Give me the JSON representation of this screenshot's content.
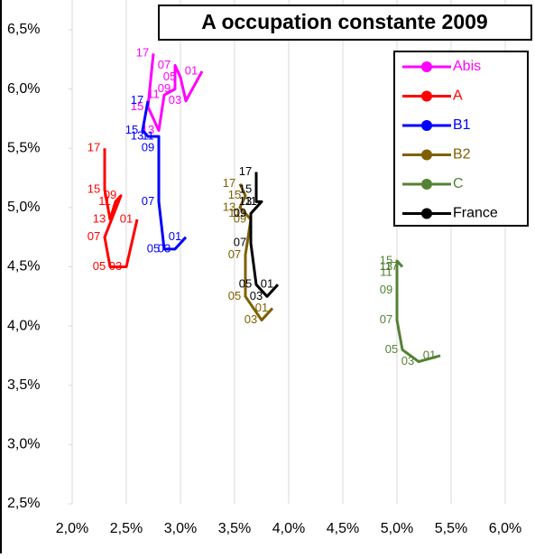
{
  "chart_data": {
    "type": "scatter-line",
    "title": "A occupation constante 2009",
    "xlim": [
      2.0,
      6.0
    ],
    "ylim": [
      2.5,
      6.5
    ],
    "xticks": [
      {
        "value": 2.0,
        "label": "2,0%"
      },
      {
        "value": 2.5,
        "label": "2,5%"
      },
      {
        "value": 3.0,
        "label": "3,0%"
      },
      {
        "value": 3.5,
        "label": "3,5%"
      },
      {
        "value": 4.0,
        "label": "4,0%"
      },
      {
        "value": 4.5,
        "label": "4,5%"
      },
      {
        "value": 5.0,
        "label": "5,0%"
      },
      {
        "value": 5.5,
        "label": "5,5%"
      },
      {
        "value": 6.0,
        "label": "6,0%"
      }
    ],
    "yticks": [
      {
        "value": 2.5,
        "label": "2,5%"
      },
      {
        "value": 3.0,
        "label": "3,0%"
      },
      {
        "value": 3.5,
        "label": "3,5%"
      },
      {
        "value": 4.0,
        "label": "4,0%"
      },
      {
        "value": 4.5,
        "label": "4,5%"
      },
      {
        "value": 5.0,
        "label": "5,0%"
      },
      {
        "value": 5.5,
        "label": "5,5%"
      },
      {
        "value": 6.0,
        "label": "6,0%"
      },
      {
        "value": 6.5,
        "label": "6,5%"
      }
    ],
    "grid": "x",
    "legend": "upper right",
    "series": [
      {
        "name": "Abis",
        "color": "#ff00ff",
        "point_labels": [
          "01",
          "03",
          "05",
          "07",
          "09",
          "11",
          "13",
          "15",
          "17"
        ],
        "x": [
          3.2,
          3.05,
          3.0,
          2.95,
          2.95,
          2.85,
          2.8,
          2.7,
          2.75
        ],
        "values": [
          6.15,
          5.9,
          6.1,
          6.2,
          6.0,
          5.95,
          5.65,
          5.85,
          6.3
        ]
      },
      {
        "name": "A",
        "color": "#ff0000",
        "point_labels": [
          "01",
          "03",
          "05",
          "07",
          "09",
          "11",
          "13",
          "15",
          "17"
        ],
        "x": [
          2.6,
          2.5,
          2.35,
          2.3,
          2.45,
          2.4,
          2.35,
          2.3,
          2.3
        ],
        "values": [
          4.9,
          4.5,
          4.5,
          4.75,
          5.1,
          5.05,
          4.9,
          5.15,
          5.5
        ]
      },
      {
        "name": "B1",
        "color": "#0000ff",
        "point_labels": [
          "01",
          "03",
          "05",
          "07",
          "09",
          "11",
          "13",
          "15",
          "17"
        ],
        "x": [
          3.05,
          2.95,
          2.85,
          2.8,
          2.8,
          2.8,
          2.7,
          2.65,
          2.7
        ],
        "values": [
          4.75,
          4.65,
          4.65,
          5.05,
          5.5,
          5.6,
          5.6,
          5.65,
          5.9
        ]
      },
      {
        "name": "B2",
        "color": "#7f6000",
        "point_labels": [
          "01",
          "03",
          "05",
          "07",
          "09",
          "11",
          "13",
          "15",
          "17"
        ],
        "x": [
          3.85,
          3.75,
          3.6,
          3.6,
          3.65,
          3.6,
          3.55,
          3.6,
          3.55
        ],
        "values": [
          4.15,
          4.05,
          4.25,
          4.6,
          4.9,
          4.95,
          5.0,
          5.1,
          5.2
        ]
      },
      {
        "name": "C",
        "color": "#548235",
        "point_labels": [
          "01",
          "03",
          "05",
          "07",
          "09",
          "11",
          "13",
          "15",
          "17"
        ],
        "x": [
          5.4,
          5.2,
          5.05,
          5.0,
          5.0,
          5.0,
          5.0,
          5.0,
          5.05
        ],
        "values": [
          3.75,
          3.7,
          3.8,
          4.05,
          4.3,
          4.45,
          4.5,
          4.55,
          4.5
        ]
      },
      {
        "name": "France",
        "color": "#000000",
        "point_labels": [
          "01",
          "03",
          "05",
          "07",
          "09",
          "11",
          "13",
          "15",
          "17"
        ],
        "x": [
          3.9,
          3.8,
          3.7,
          3.65,
          3.65,
          3.75,
          3.7,
          3.7,
          3.7
        ],
        "values": [
          4.35,
          4.25,
          4.35,
          4.7,
          4.95,
          5.05,
          5.05,
          5.15,
          5.3
        ]
      }
    ]
  }
}
